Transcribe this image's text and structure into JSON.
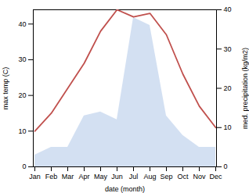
{
  "chart_data": {
    "type": "line",
    "xlabel": "date (month)",
    "ylabel": "max temp (C)",
    "y2label": "med. precipitation (kg/m2)",
    "categories": [
      "Jan",
      "Feb",
      "Mar",
      "Apr",
      "May",
      "Jun",
      "Jul",
      "Aug",
      "Sep",
      "Oct",
      "Nov",
      "Dec"
    ],
    "series": [
      {
        "type": "area",
        "axis": "y2",
        "color": "#aec6e8",
        "values": [
          3,
          5,
          5,
          13,
          14,
          12,
          38,
          36,
          13,
          8,
          5,
          5
        ]
      },
      {
        "type": "line",
        "color": "#c0504d",
        "values": [
          10,
          15,
          22,
          29,
          38,
          44,
          42,
          43,
          37,
          26,
          17,
          11
        ]
      }
    ],
    "ylim": [
      0,
      44
    ],
    "yticks": [
      0,
      10,
      20,
      30,
      40
    ],
    "y2lim": [
      0,
      40
    ],
    "y2ticks": [
      0,
      10,
      20,
      30,
      40
    ],
    "grid": false
  }
}
